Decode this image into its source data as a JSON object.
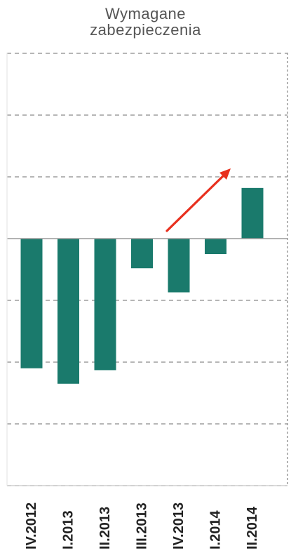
{
  "chart_data": {
    "type": "bar",
    "title_lines": [
      "Wymagane",
      "zabezpieczenia"
    ],
    "categories": [
      "IV.2012",
      "I.2013",
      "II.2013",
      "III.2013",
      "IV.2013",
      "I.2014",
      "II.2014"
    ],
    "values": [
      -2.1,
      -2.35,
      -2.13,
      -0.48,
      -0.87,
      -0.25,
      0.82
    ],
    "xlabel": "",
    "ylabel": "",
    "ylim": [
      -4,
      3
    ],
    "grid": true,
    "legend": "none",
    "colors": {
      "bar": "#1a7a6c",
      "grid": "#8a8a8a",
      "axis": "#9a9a9a",
      "arrow": "#e8301e",
      "text": "#555555"
    },
    "annotation": {
      "type": "arrow",
      "color": "#e8301e",
      "direction": "up-right"
    }
  }
}
